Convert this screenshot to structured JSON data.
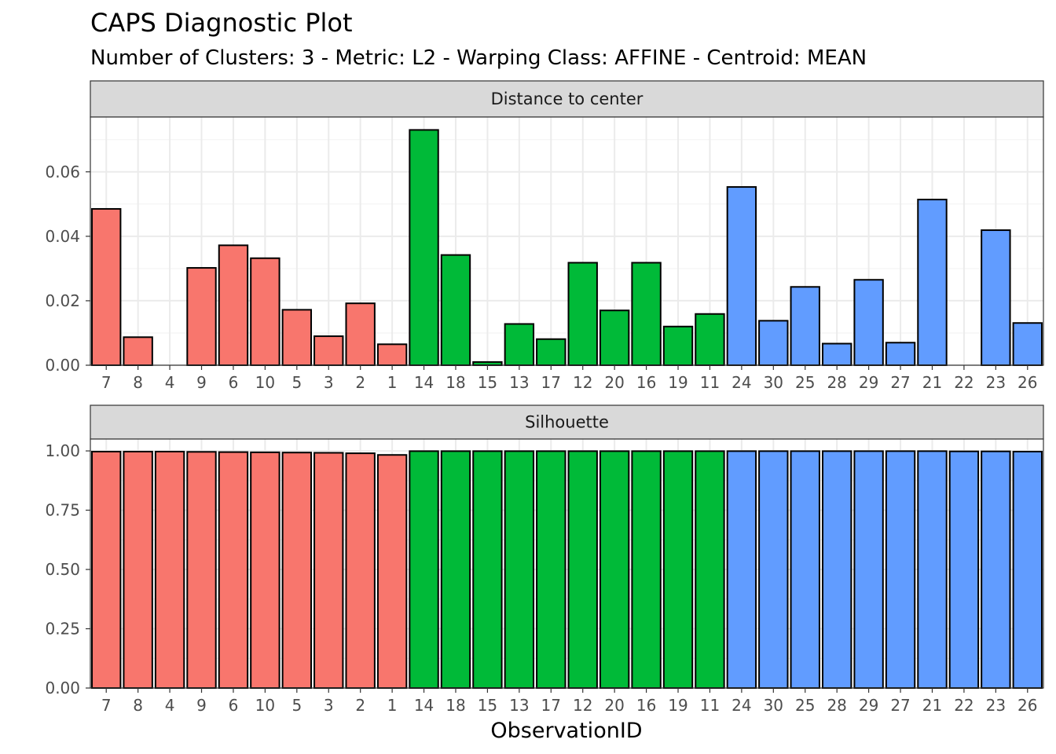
{
  "chart_data": {
    "type": "bar",
    "title": "CAPS Diagnostic Plot",
    "subtitle": "Number of Clusters: 3 - Metric: L2 - Warping Class: AFFINE - Centroid: MEAN",
    "xlabel": "ObservationID",
    "categories": [
      "7",
      "8",
      "4",
      "9",
      "6",
      "10",
      "5",
      "3",
      "2",
      "1",
      "14",
      "18",
      "15",
      "13",
      "17",
      "12",
      "20",
      "16",
      "19",
      "11",
      "24",
      "30",
      "25",
      "28",
      "29",
      "27",
      "21",
      "22",
      "23",
      "26"
    ],
    "clusters": [
      1,
      1,
      1,
      1,
      1,
      1,
      1,
      1,
      1,
      1,
      2,
      2,
      2,
      2,
      2,
      2,
      2,
      2,
      2,
      2,
      3,
      3,
      3,
      3,
      3,
      3,
      3,
      3,
      3,
      3
    ],
    "cluster_colors": {
      "1": "#F8766D",
      "2": "#00BA38",
      "3": "#619CFF"
    },
    "panels": [
      {
        "strip": "Distance to center",
        "ylim": [
          0,
          0.077
        ],
        "yticks": [
          0,
          0.02,
          0.04,
          0.06
        ],
        "ytick_labels": [
          "0.00",
          "0.02",
          "0.04",
          "0.06"
        ],
        "values": [
          0.0485,
          0.0087,
          0.0,
          0.0302,
          0.0372,
          0.0332,
          0.0172,
          0.009,
          0.0192,
          0.0065,
          0.073,
          0.0342,
          0.001,
          0.0128,
          0.0081,
          0.0318,
          0.017,
          0.0318,
          0.012,
          0.0159,
          0.0553,
          0.0138,
          0.0243,
          0.0067,
          0.0265,
          0.007,
          0.0514,
          0.0,
          0.0419,
          0.0131
        ]
      },
      {
        "strip": "Silhouette",
        "ylim": [
          0,
          1.05
        ],
        "yticks": [
          0,
          0.25,
          0.5,
          0.75,
          1.0
        ],
        "ytick_labels": [
          "0.00",
          "0.25",
          "0.50",
          "0.75",
          "1.00"
        ],
        "values": [
          0.997,
          0.997,
          0.997,
          0.996,
          0.995,
          0.994,
          0.993,
          0.992,
          0.99,
          0.983,
          0.999,
          0.999,
          0.999,
          0.999,
          0.999,
          0.999,
          0.999,
          0.999,
          0.999,
          0.999,
          0.999,
          0.999,
          0.999,
          0.999,
          0.999,
          0.999,
          0.999,
          0.998,
          0.998,
          0.997
        ]
      }
    ]
  }
}
